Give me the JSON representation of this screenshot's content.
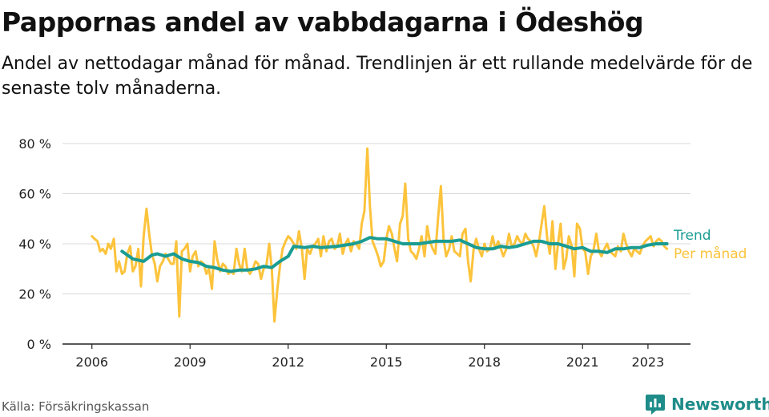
{
  "title": "Pappornas andel av vabbdagarna i Ödeshög",
  "subtitle": "Andel av nettodagar månad för månad. Trendlinjen är ett rullande medelvärde för de senaste tolv månaderna.",
  "source": "Källa: Försäkringskassan",
  "brand": "Newsworthy",
  "colors": {
    "trend": "#1a9c93",
    "monthly": "#fcc33c",
    "grid": "#d9d9d9",
    "axis": "#222222"
  },
  "chart_data": {
    "type": "line",
    "ylim": [
      0,
      80
    ],
    "y_ticks": [
      0,
      20,
      40,
      60,
      80
    ],
    "y_tick_labels": [
      "0 %",
      "20 %",
      "40 %",
      "60 %",
      "80 %"
    ],
    "x_ticks": [
      2006,
      2009,
      2012,
      2015,
      2018,
      2021,
      2023
    ],
    "x_tick_labels": [
      "2006",
      "2009",
      "2012",
      "2015",
      "2018",
      "2021",
      "2023"
    ],
    "xlim": [
      2005.1,
      2024.3
    ],
    "grid": true,
    "legend_placement": "right, at line ends",
    "series": [
      {
        "name": "Per månad",
        "x": [
          2006.0,
          2006.08,
          2006.17,
          2006.25,
          2006.33,
          2006.42,
          2006.5,
          2006.58,
          2006.67,
          2006.75,
          2006.83,
          2006.92,
          2007.0,
          2007.08,
          2007.17,
          2007.25,
          2007.33,
          2007.42,
          2007.5,
          2007.58,
          2007.67,
          2007.75,
          2007.83,
          2007.92,
          2008.0,
          2008.08,
          2008.17,
          2008.25,
          2008.33,
          2008.42,
          2008.5,
          2008.58,
          2008.67,
          2008.75,
          2008.83,
          2008.92,
          2009.0,
          2009.08,
          2009.17,
          2009.25,
          2009.33,
          2009.42,
          2009.5,
          2009.58,
          2009.67,
          2009.75,
          2009.83,
          2009.92,
          2010.0,
          2010.08,
          2010.17,
          2010.25,
          2010.33,
          2010.42,
          2010.5,
          2010.58,
          2010.67,
          2010.75,
          2010.83,
          2010.92,
          2011.0,
          2011.08,
          2011.17,
          2011.25,
          2011.33,
          2011.42,
          2011.5,
          2011.58,
          2011.67,
          2011.75,
          2011.83,
          2011.92,
          2012.0,
          2012.08,
          2012.17,
          2012.25,
          2012.33,
          2012.42,
          2012.5,
          2012.58,
          2012.67,
          2012.75,
          2012.83,
          2012.92,
          2013.0,
          2013.08,
          2013.17,
          2013.25,
          2013.33,
          2013.42,
          2013.5,
          2013.58,
          2013.67,
          2013.75,
          2013.83,
          2013.92,
          2014.0,
          2014.08,
          2014.17,
          2014.25,
          2014.33,
          2014.42,
          2014.5,
          2014.58,
          2014.67,
          2014.75,
          2014.83,
          2014.92,
          2015.0,
          2015.08,
          2015.17,
          2015.25,
          2015.33,
          2015.42,
          2015.5,
          2015.58,
          2015.67,
          2015.75,
          2015.83,
          2015.92,
          2016.0,
          2016.08,
          2016.17,
          2016.25,
          2016.33,
          2016.42,
          2016.5,
          2016.58,
          2016.67,
          2016.75,
          2016.83,
          2016.92,
          2017.0,
          2017.08,
          2017.17,
          2017.25,
          2017.33,
          2017.42,
          2017.5,
          2017.58,
          2017.67,
          2017.75,
          2017.83,
          2017.92,
          2018.0,
          2018.08,
          2018.17,
          2018.25,
          2018.33,
          2018.42,
          2018.5,
          2018.58,
          2018.67,
          2018.75,
          2018.83,
          2018.92,
          2019.0,
          2019.08,
          2019.17,
          2019.25,
          2019.33,
          2019.42,
          2019.5,
          2019.58,
          2019.67,
          2019.75,
          2019.83,
          2019.92,
          2020.0,
          2020.08,
          2020.17,
          2020.25,
          2020.33,
          2020.42,
          2020.5,
          2020.58,
          2020.67,
          2020.75,
          2020.83,
          2020.92,
          2021.0,
          2021.08,
          2021.17,
          2021.25,
          2021.33,
          2021.42,
          2021.5,
          2021.58,
          2021.67,
          2021.75,
          2021.83,
          2021.92,
          2022.0,
          2022.08,
          2022.17,
          2022.25,
          2022.33,
          2022.42,
          2022.5,
          2022.58,
          2022.67,
          2022.75,
          2022.83,
          2022.92,
          2023.0,
          2023.08,
          2023.17,
          2023.25,
          2023.33,
          2023.42,
          2023.5,
          2023.58
        ],
        "values": [
          43,
          42,
          41,
          37,
          38,
          36,
          40,
          38,
          42,
          29,
          33,
          28,
          29,
          36,
          39,
          29,
          31,
          38,
          23,
          43,
          54,
          44,
          36,
          32,
          25,
          31,
          33,
          36,
          34,
          32,
          32,
          41,
          11,
          37,
          38,
          40,
          29,
          35,
          37,
          31,
          33,
          32,
          28,
          30,
          22,
          41,
          34,
          29,
          32,
          31,
          28,
          29,
          28,
          38,
          32,
          29,
          38,
          30,
          28,
          30,
          33,
          32,
          26,
          30,
          31,
          40,
          30,
          9,
          22,
          31,
          38,
          41,
          43,
          42,
          40,
          38,
          45,
          38,
          26,
          38,
          36,
          39,
          40,
          42,
          35,
          43,
          37,
          41,
          42,
          38,
          39,
          44,
          36,
          40,
          42,
          37,
          41,
          40,
          38,
          48,
          53,
          78,
          55,
          41,
          38,
          35,
          31,
          33,
          42,
          47,
          44,
          38,
          33,
          48,
          51,
          64,
          42,
          37,
          36,
          34,
          38,
          43,
          35,
          47,
          41,
          38,
          36,
          50,
          63,
          42,
          35,
          38,
          43,
          37,
          36,
          35,
          44,
          46,
          33,
          25,
          38,
          42,
          38,
          35,
          40,
          37,
          38,
          43,
          38,
          41,
          38,
          35,
          38,
          44,
          39,
          40,
          43,
          41,
          40,
          44,
          42,
          41,
          39,
          35,
          41,
          48,
          55,
          42,
          36,
          49,
          30,
          40,
          48,
          30,
          34,
          43,
          39,
          27,
          48,
          46,
          38,
          37,
          28,
          35,
          37,
          44,
          37,
          35,
          38,
          40,
          37,
          36,
          35,
          39,
          37,
          44,
          40,
          37,
          35,
          38,
          37,
          36,
          39,
          41,
          42,
          43,
          39,
          41,
          42,
          41,
          39,
          38
        ]
      },
      {
        "name": "Trend",
        "x": [
          2006.92,
          2007.25,
          2007.58,
          2007.83,
          2008.0,
          2008.25,
          2008.5,
          2008.75,
          2009.0,
          2009.25,
          2009.5,
          2009.75,
          2010.0,
          2010.25,
          2010.5,
          2010.75,
          2011.0,
          2011.25,
          2011.5,
          2011.75,
          2012.0,
          2012.17,
          2012.5,
          2012.75,
          2013.0,
          2013.5,
          2014.0,
          2014.25,
          2014.5,
          2014.75,
          2015.0,
          2015.5,
          2016.0,
          2016.5,
          2016.83,
          2017.0,
          2017.25,
          2017.5,
          2017.75,
          2018.0,
          2018.25,
          2018.5,
          2018.75,
          2019.0,
          2019.25,
          2019.5,
          2019.75,
          2020.0,
          2020.25,
          2020.5,
          2020.75,
          2021.0,
          2021.25,
          2021.5,
          2021.75,
          2022.0,
          2022.25,
          2022.5,
          2022.75,
          2023.0,
          2023.25,
          2023.58
        ],
        "values": [
          37,
          34,
          33,
          35.5,
          36,
          35,
          36,
          34,
          33,
          32.5,
          31,
          30.5,
          29.5,
          29,
          29.5,
          29.5,
          30,
          31,
          30.5,
          33,
          35,
          39,
          38.5,
          39,
          38.5,
          39,
          40,
          41,
          42.5,
          42,
          42,
          40,
          40,
          41,
          41,
          41,
          41.5,
          40,
          38.5,
          38,
          38,
          39,
          38.5,
          39,
          40,
          41,
          41,
          40,
          40,
          39,
          38,
          38.5,
          37,
          37,
          36.5,
          38,
          38,
          38.5,
          38.5,
          39.5,
          40,
          40
        ]
      }
    ]
  }
}
